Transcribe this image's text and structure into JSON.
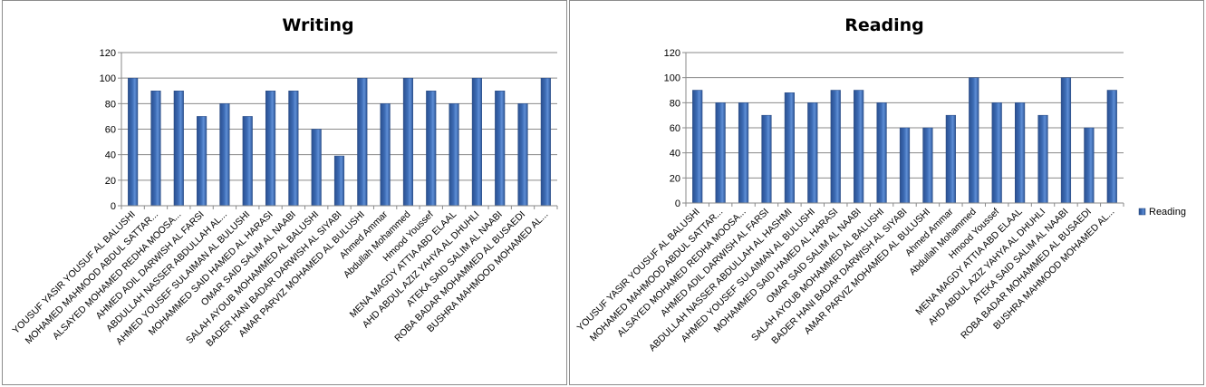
{
  "chart_data": [
    {
      "type": "bar",
      "title": "Writing",
      "xlabel": "",
      "ylabel": "",
      "ylim": [
        0,
        120
      ],
      "yticks": [
        0,
        20,
        40,
        60,
        80,
        100,
        120
      ],
      "grid": true,
      "legend": null,
      "bar_color": "#3d6cb5",
      "categories": [
        "YOUSUF YASIR YOUSUF AL BALUSHI",
        "MOHAMED MAHMOOD ABDUL SATTAR...",
        "ALSAYED MOHAMED REDHA MOOSA...",
        "AHMED ADIL DARWISH AL FARSI",
        "ABDULLAH NASSER ABDULLAH AL...",
        "AHMED YOUSEF SULAIMAN AL BULUSHI",
        "MOHAMMED SAID HAMED AL HARASI",
        "OMAR SAID SALIM AL NAABI",
        "SALAH AYOUB MOHAMMED AL BALUSHI",
        "BADER HANI BADAR DARWISH AL SIYABI",
        "AMAR PARVIZ MOHAMED AL BULUSHI",
        "Ahmed Ammar",
        "Abdullah Mohammed",
        "Hmood Youssef",
        "MENA MAGDY ATTIA ABD ELAAL",
        "AHD ABDUL AZIZ YAHYA AL DHUHLI",
        "ATEKA SAID SALIM AL NAABI",
        "ROBA BADAR MOHAMMED AL BUSAEDI",
        "BUSHRA MAHMOOD MOHAMED AL..."
      ],
      "series": [
        {
          "values": [
            100,
            90,
            90,
            70,
            80,
            70,
            90,
            90,
            60,
            39,
            100,
            80,
            100,
            90,
            80,
            100,
            90,
            80,
            100
          ]
        }
      ]
    },
    {
      "type": "bar",
      "title": "Reading",
      "xlabel": "",
      "ylabel": "",
      "ylim": [
        0,
        120
      ],
      "yticks": [
        0,
        20,
        40,
        60,
        80,
        100,
        120
      ],
      "grid": true,
      "legend": "right",
      "bar_color": "#3d6cb5",
      "categories": [
        "YOUSUF YASIR YOUSUF AL BALUSHI",
        "MOHAMED MAHMOOD ABDUL SATTAR...",
        "ALSAYED MOHAMED REDHA MOOSA...",
        "AHMED ADIL DARWISH AL FARSI",
        "ABDULLAH NASSER ABDULLAH AL HASHMI",
        "AHMED YOUSEF SULAIMAN AL BULUSHI",
        "MOHAMMED SAID HAMED AL HARASI",
        "OMAR SAID SALIM AL NAABI",
        "SALAH AYOUB MOHAMMED AL BALUSHI",
        "BADER HANI BADAR DARWISH AL SIYABI",
        "AMAR PARVIZ MOHAMED AL BULUSHI",
        "Ahmed Ammar",
        "Abdullah Mohammed",
        "Hmood Youssef",
        "MENA MAGDY ATTIA ABD ELAAL",
        "AHD ABDUL AZIZ YAHYA AL DHUHLI",
        "ATEKA SAID SALIM AL NAABI",
        "ROBA BADAR MOHAMMED AL BUSAEDI",
        "BUSHRA MAHMOOD MOHAMED AL..."
      ],
      "series": [
        {
          "name": "Reading",
          "values": [
            90,
            80,
            80,
            70,
            88,
            80,
            90,
            90,
            80,
            60,
            60,
            70,
            100,
            80,
            80,
            70,
            100,
            60,
            90
          ]
        }
      ]
    }
  ]
}
